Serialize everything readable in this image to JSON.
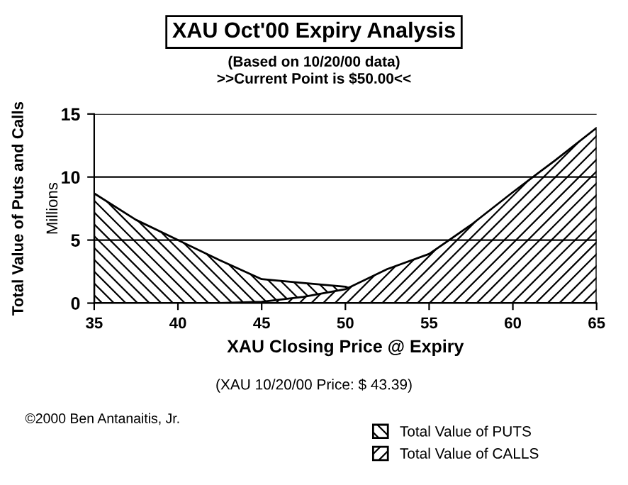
{
  "chart_data": {
    "type": "area",
    "title": "XAU Oct'00 Expiry Analysis",
    "subtitle": "(Based on 10/20/00 data)\n>>Current Point is $50.00<<",
    "xlabel": "XAU Closing Price @ Expiry",
    "ylabel": "Total Value of Puts and Calls",
    "annotations": [
      "Millions",
      "(XAU 10/20/00 Price: $ 43.39)",
      "©2000 Ben Antanaitis, Jr."
    ],
    "x": [
      35,
      37.5,
      40,
      42.5,
      45,
      47.5,
      50,
      52.5,
      55,
      57.5,
      60,
      62.5,
      65
    ],
    "series": [
      {
        "name": "Total Value of PUTS",
        "color": "#000000",
        "values": [
          8.7,
          6.6,
          5.0,
          3.4,
          1.9,
          1.6,
          1.3,
          0,
          0,
          0,
          0,
          0,
          0
        ]
      },
      {
        "name": "Total Value of CALLS",
        "color": "#000000",
        "values": [
          0,
          0,
          0,
          0,
          0.1,
          0.5,
          1.1,
          2.7,
          3.9,
          6.2,
          8.8,
          11.3,
          13.9
        ]
      }
    ],
    "xlim": [
      35,
      65
    ],
    "xticks": [
      35,
      40,
      45,
      50,
      55,
      60,
      65
    ],
    "ylim": [
      0,
      15
    ],
    "yticks": [
      0,
      5,
      10,
      15
    ],
    "grid": "y",
    "legend": "bottom right"
  }
}
